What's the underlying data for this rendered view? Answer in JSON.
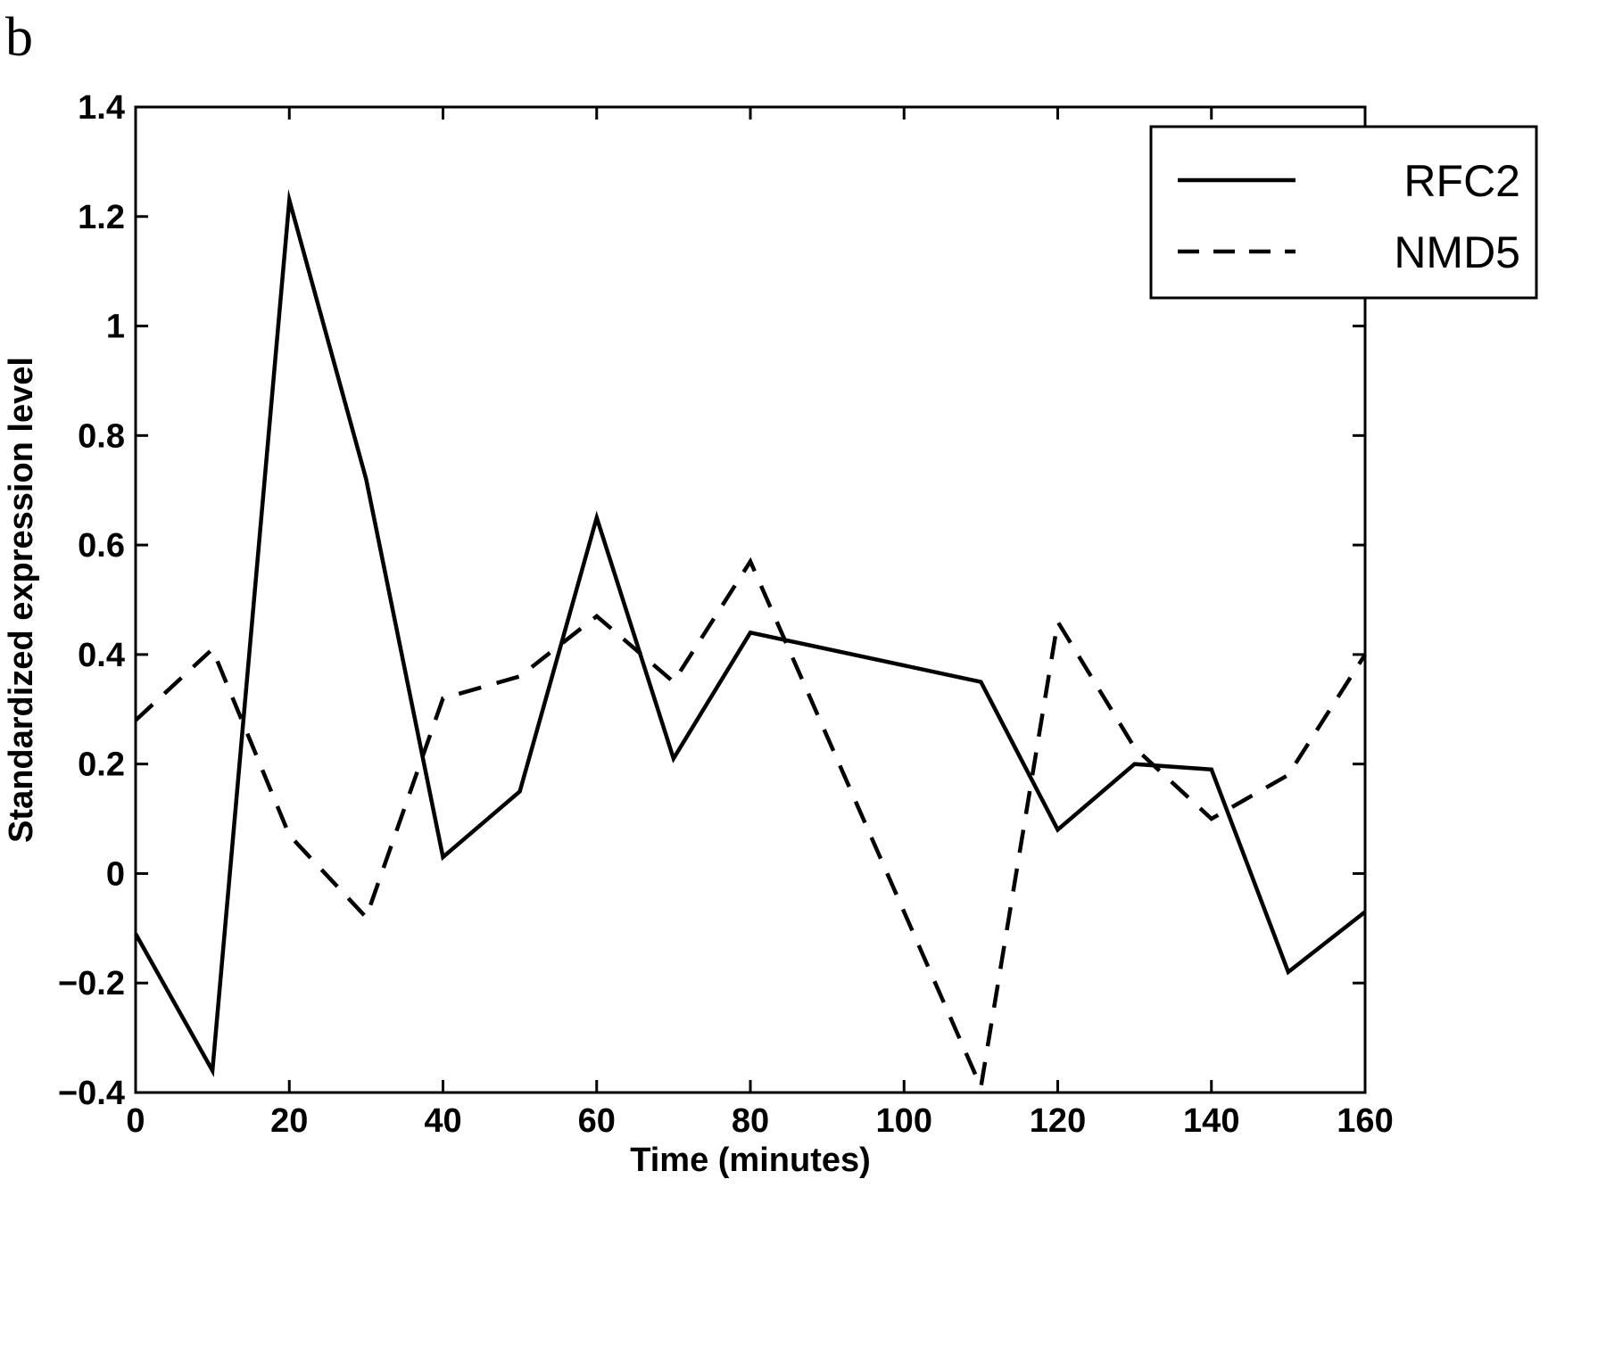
{
  "panel_label": "b",
  "chart_data": {
    "type": "line",
    "title": "",
    "xlabel": "Time (minutes)",
    "ylabel": "Standardized expression level",
    "xlim": [
      0,
      160
    ],
    "ylim": [
      -0.4,
      1.4
    ],
    "xticks": [
      0,
      20,
      40,
      60,
      80,
      100,
      120,
      140,
      160
    ],
    "xtick_labels": [
      "0",
      "20",
      "40",
      "60",
      "80",
      "100",
      "120",
      "140",
      "160"
    ],
    "yticks": [
      -0.4,
      -0.2,
      0,
      0.2,
      0.4,
      0.6,
      0.8,
      1.0,
      1.2,
      1.4
    ],
    "ytick_labels": [
      "−0.4",
      "−0.2",
      "0",
      "0.2",
      "0.4",
      "0.6",
      "0.8",
      "1",
      "1.2",
      "1.4"
    ],
    "grid": false,
    "legend_position": "top-right",
    "series": [
      {
        "name": "RFC2",
        "style": "solid",
        "color": "#000000",
        "x": [
          0,
          10,
          20,
          30,
          40,
          50,
          60,
          70,
          80,
          110,
          120,
          130,
          140,
          150,
          160
        ],
        "y": [
          -0.11,
          -0.36,
          1.23,
          0.72,
          0.03,
          0.15,
          0.65,
          0.21,
          0.44,
          0.35,
          0.08,
          0.2,
          0.19,
          -0.18,
          -0.07
        ]
      },
      {
        "name": "NMD5",
        "style": "dashed",
        "color": "#000000",
        "x": [
          0,
          10,
          20,
          30,
          40,
          50,
          60,
          70,
          80,
          110,
          120,
          130,
          140,
          150,
          160
        ],
        "y": [
          0.28,
          0.41,
          0.07,
          -0.08,
          0.32,
          0.36,
          0.47,
          0.35,
          0.57,
          -0.39,
          0.46,
          0.23,
          0.1,
          0.18,
          0.4
        ]
      }
    ]
  }
}
